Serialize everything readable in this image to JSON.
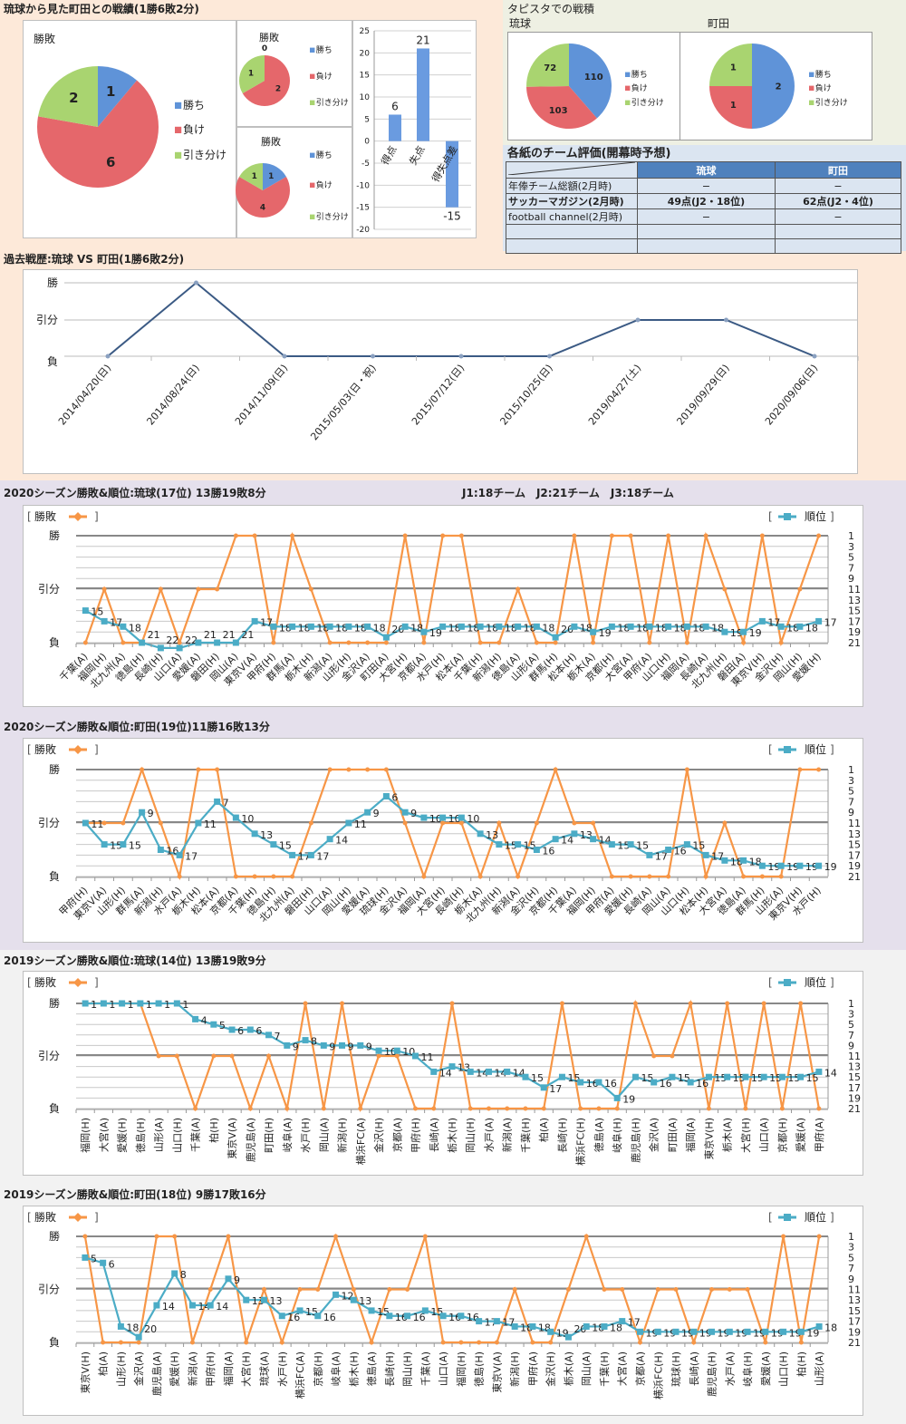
{
  "colors": {
    "win": "#5f93d8",
    "lose": "#e5676b",
    "draw": "#a9d470",
    "result_line": "#f79646",
    "rank_line": "#4bacc6",
    "history_line": "#3b5a84",
    "table_header": "#4f81bd"
  },
  "matchup": {
    "title": "琉球から見た町田との戦績(1勝6敗2分)",
    "legend": [
      "勝ち",
      "負け",
      "引き分け"
    ]
  },
  "tapista": {
    "title": "タピスタでの戦積"
  },
  "evaluation": {
    "title": "各紙のチーム評価(開幕時予想)",
    "headers": [
      "",
      "琉球",
      "町田"
    ],
    "rows": [
      [
        "年俸チーム総額(2月時)",
        "−",
        "−"
      ],
      [
        "サッカーマガジン(2月時)",
        "49点(J2・18位)",
        "62点(J2・4位)"
      ],
      [
        "football channel(2月時)",
        "−",
        "−"
      ],
      [
        "",
        "",
        ""
      ],
      [
        "",
        "",
        ""
      ]
    ]
  },
  "chart_data": [
    {
      "type": "pie",
      "title": "勝敗",
      "labels": [
        "勝ち",
        "負け",
        "引き分け"
      ],
      "values": [
        1,
        6,
        2
      ]
    },
    {
      "type": "pie",
      "title": "勝敗",
      "labels": [
        "勝ち",
        "負け",
        "引き分け"
      ],
      "values": [
        0,
        2,
        1
      ]
    },
    {
      "type": "pie",
      "title": "勝敗",
      "labels": [
        "勝ち",
        "負け",
        "引き分け"
      ],
      "values": [
        1,
        4,
        1
      ]
    },
    {
      "type": "bar",
      "categories": [
        "得点",
        "失点",
        "得失点差"
      ],
      "values": [
        6,
        21,
        -15
      ],
      "ylim": [
        -20,
        25
      ],
      "yticks": [
        25,
        20,
        15,
        10,
        5,
        0,
        -5,
        -10,
        -15,
        -20
      ],
      "grid": true
    },
    {
      "type": "pie",
      "title": "琉球",
      "labels": [
        "勝ち",
        "負け",
        "引き分け"
      ],
      "values": [
        110,
        103,
        72
      ]
    },
    {
      "type": "pie",
      "title": "町田",
      "labels": [
        "勝ち",
        "負け",
        "引き分け"
      ],
      "values": [
        2,
        1,
        1
      ]
    },
    {
      "type": "line",
      "title": "過去戦歴:琉球 VS 町田(1勝6敗2分)",
      "y_labels": [
        "勝",
        "引分",
        "負"
      ],
      "categories": [
        "2014/04/20(日)",
        "2014/08/24(日)",
        "2014/11/09(日)",
        "2015/05/03(日・祝)",
        "2015/07/12(日)",
        "2015/10/25(日)",
        "2019/04/27(土)",
        "2019/09/29(日)",
        "2020/09/06(日)"
      ],
      "results": [
        "負",
        "勝",
        "負",
        "負",
        "負",
        "負",
        "引分",
        "引分",
        "負"
      ]
    },
    {
      "type": "line",
      "title": "2020シーズン勝敗&順位:琉球(17位) 13勝19敗8分",
      "note": "J1:18チーム　J2:21チーム　J3:18チーム",
      "legend_left": "勝敗",
      "legend_right": "順位",
      "y_labels": [
        "勝",
        "引分",
        "負"
      ],
      "rank_ticks": [
        1,
        3,
        5,
        7,
        9,
        11,
        13,
        15,
        17,
        19,
        21
      ],
      "categories": [
        "千葉(A)",
        "福岡(H)",
        "北九州(A)",
        "徳島(H)",
        "長崎(H)",
        "山口(A)",
        "愛媛(A)",
        "磐田(H)",
        "岡山(A)",
        "東京V(A)",
        "甲府(H)",
        "群馬(A)",
        "栃木(H)",
        "新潟(A)",
        "山形(H)",
        "金沢(A)",
        "町田(A)",
        "大宮(H)",
        "京都(A)",
        "水戸(H)",
        "松本(A)",
        "千葉(H)",
        "新潟(H)",
        "徳島(A)",
        "山形(A)",
        "群馬(H)",
        "松本(H)",
        "栃木(A)",
        "京都(H)",
        "大宮(A)",
        "甲府(A)",
        "山口(H)",
        "福岡(A)",
        "長崎(A)",
        "北九州(H)",
        "磐田(A)",
        "東京V(H)",
        "金沢(H)",
        "岡山(H)",
        "愛媛(H)"
      ],
      "results": [
        "負",
        "引分",
        "負",
        "負",
        "引分",
        "負",
        "引分",
        "引分",
        "勝",
        "勝",
        "負",
        "勝",
        "引分",
        "負",
        "負",
        "負",
        "負",
        "勝",
        "負",
        "勝",
        "勝",
        "負",
        "負",
        "引分",
        "負",
        "負",
        "勝",
        "負",
        "勝",
        "勝",
        "負",
        "勝",
        "負",
        "勝",
        "引分",
        "負",
        "勝",
        "負",
        "引分",
        "勝"
      ],
      "ranks": [
        15,
        17,
        18,
        21,
        22,
        22,
        21,
        21,
        21,
        17,
        18,
        18,
        18,
        18,
        18,
        18,
        20,
        18,
        19,
        18,
        18,
        18,
        18,
        18,
        18,
        20,
        18,
        19,
        18,
        18,
        18,
        18,
        18,
        18,
        19,
        19,
        17,
        18,
        18,
        17
      ]
    },
    {
      "type": "line",
      "title": "2020シーズン勝敗&順位:町田(19位)11勝16敗13分",
      "legend_left": "勝敗",
      "legend_right": "順位",
      "y_labels": [
        "勝",
        "引分",
        "負"
      ],
      "rank_ticks": [
        1,
        3,
        5,
        7,
        9,
        11,
        13,
        15,
        17,
        19,
        21
      ],
      "categories": [
        "甲府(H)",
        "東京V(A)",
        "山形(H)",
        "群馬(A)",
        "新潟(H)",
        "水戸(A)",
        "栃木(H)",
        "松本(A)",
        "京都(A)",
        "千葉(H)",
        "徳島(H)",
        "北九州(A)",
        "磐田(H)",
        "山口(A)",
        "岡山(H)",
        "愛媛(A)",
        "琉球(H)",
        "金沢(A)",
        "福岡(A)",
        "大宮(H)",
        "長崎(H)",
        "栃木(A)",
        "北九州(H)",
        "新潟(A)",
        "金沢(H)",
        "京都(H)",
        "千葉(A)",
        "福岡(H)",
        "甲府(A)",
        "愛媛(H)",
        "長崎(A)",
        "岡山(A)",
        "山口(H)",
        "松本(H)",
        "大宮(A)",
        "徳島(A)",
        "群馬(H)",
        "山形(A)",
        "東京V(H)",
        "水戸(H)"
      ],
      "results": [
        "引分",
        "引分",
        "引分",
        "勝",
        "引分",
        "負",
        "勝",
        "勝",
        "負",
        "負",
        "負",
        "負",
        "引分",
        "勝",
        "勝",
        "勝",
        "勝",
        "引分",
        "負",
        "引分",
        "引分",
        "負",
        "引分",
        "負",
        "引分",
        "勝",
        "引分",
        "引分",
        "負",
        "負",
        "負",
        "負",
        "勝",
        "負",
        "引分",
        "負",
        "負",
        "負",
        "勝",
        "勝"
      ],
      "ranks": [
        11,
        15,
        15,
        9,
        16,
        17,
        11,
        7,
        10,
        13,
        15,
        17,
        17,
        14,
        11,
        9,
        6,
        9,
        10,
        10,
        10,
        13,
        15,
        15,
        16,
        14,
        13,
        14,
        15,
        15,
        17,
        16,
        15,
        17,
        18,
        18,
        19,
        19,
        19,
        19
      ]
    },
    {
      "type": "line",
      "title": "2019シーズン勝敗&順位:琉球(14位) 13勝19敗9分",
      "legend_left": "勝敗",
      "legend_right": "順位",
      "y_labels": [
        "勝",
        "引分",
        "負"
      ],
      "rank_ticks": [
        1,
        3,
        5,
        7,
        9,
        11,
        13,
        15,
        17,
        19,
        21
      ],
      "categories": [
        "福岡(H)",
        "大宮(A)",
        "愛媛(H)",
        "徳島(H)",
        "山形(A)",
        "山口(H)",
        "千葉(A)",
        "柏(H)",
        "東京V(A)",
        "鹿児島(A)",
        "町田(H)",
        "岐阜(A)",
        "水戸(H)",
        "岡山(A)",
        "新潟(H)",
        "横浜FC(A)",
        "金沢(H)",
        "京都(A)",
        "甲府(H)",
        "長崎(A)",
        "栃木(H)",
        "岡山(H)",
        "水戸(A)",
        "新潟(A)",
        "千葉(H)",
        "柏(A)",
        "長崎(H)",
        "横浜FC(H)",
        "徳島(A)",
        "岐阜(H)",
        "鹿児島(H)",
        "金沢(A)",
        "町田(A)",
        "福岡(A)",
        "東京V(H)",
        "栃木(A)",
        "大宮(H)",
        "山口(A)",
        "京都(H)",
        "愛媛(A)",
        "甲府(A)"
      ],
      "results": [
        "勝",
        "勝",
        "勝",
        "勝",
        "引分",
        "引分",
        "負",
        "引分",
        "引分",
        "負",
        "引分",
        "負",
        "勝",
        "負",
        "勝",
        "負",
        "引分",
        "引分",
        "負",
        "負",
        "勝",
        "負",
        "負",
        "負",
        "負",
        "負",
        "勝",
        "負",
        "負",
        "負",
        "勝",
        "引分",
        "引分",
        "勝",
        "負",
        "勝",
        "負",
        "勝",
        "負",
        "勝",
        "負"
      ],
      "ranks": [
        1,
        1,
        1,
        1,
        1,
        1,
        4,
        5,
        6,
        6,
        7,
        9,
        8,
        9,
        9,
        9,
        10,
        10,
        11,
        14,
        13,
        14,
        14,
        14,
        15,
        17,
        15,
        16,
        16,
        19,
        15,
        16,
        15,
        16,
        15,
        15,
        15,
        15,
        15,
        15,
        14
      ]
    },
    {
      "type": "line",
      "title": "2019シーズン勝敗&順位:町田(18位) 9勝17敗16分",
      "legend_left": "勝敗",
      "legend_right": "順位",
      "y_labels": [
        "勝",
        "引分",
        "負"
      ],
      "rank_ticks": [
        1,
        3,
        5,
        7,
        9,
        11,
        13,
        15,
        17,
        19,
        21
      ],
      "categories": [
        "東京V(H)",
        "柏(A)",
        "山形(H)",
        "金沢(A)",
        "鹿児島(A)",
        "愛媛(H)",
        "新潟(A)",
        "甲府(H)",
        "福岡(A)",
        "大宮(H)",
        "琉球(A)",
        "水戸(H)",
        "横浜FC(A)",
        "京都(H)",
        "岐阜(A)",
        "栃木(H)",
        "徳島(A)",
        "長崎(H)",
        "岡山(H)",
        "千葉(A)",
        "山口(A)",
        "福岡(H)",
        "徳島(H)",
        "東京V(A)",
        "新潟(H)",
        "甲府(A)",
        "金沢(H)",
        "栃木(A)",
        "岡山(A)",
        "千葉(H)",
        "大宮(A)",
        "京都(A)",
        "横浜FC(H)",
        "琉球(H)",
        "長崎(A)",
        "鹿児島(H)",
        "水戸(A)",
        "岐阜(H)",
        "愛媛(A)",
        "山口(H)",
        "柏(H)",
        "山形(A)"
      ],
      "results": [
        "勝",
        "負",
        "負",
        "負",
        "勝",
        "勝",
        "負",
        "引分",
        "勝",
        "負",
        "引分",
        "負",
        "引分",
        "引分",
        "勝",
        "引分",
        "負",
        "引分",
        "引分",
        "勝",
        "負",
        "負",
        "負",
        "負",
        "引分",
        "負",
        "負",
        "引分",
        "勝",
        "引分",
        "引分",
        "負",
        "引分",
        "引分",
        "負",
        "引分",
        "引分",
        "引分",
        "負",
        "勝",
        "負",
        "勝"
      ],
      "ranks": [
        5,
        6,
        18,
        20,
        14,
        8,
        14,
        14,
        9,
        13,
        13,
        16,
        15,
        16,
        12,
        13,
        15,
        16,
        16,
        15,
        16,
        16,
        17,
        17,
        18,
        18,
        19,
        20,
        18,
        18,
        17,
        19,
        19,
        19,
        19,
        19,
        19,
        19,
        19,
        19,
        19,
        18
      ]
    }
  ]
}
